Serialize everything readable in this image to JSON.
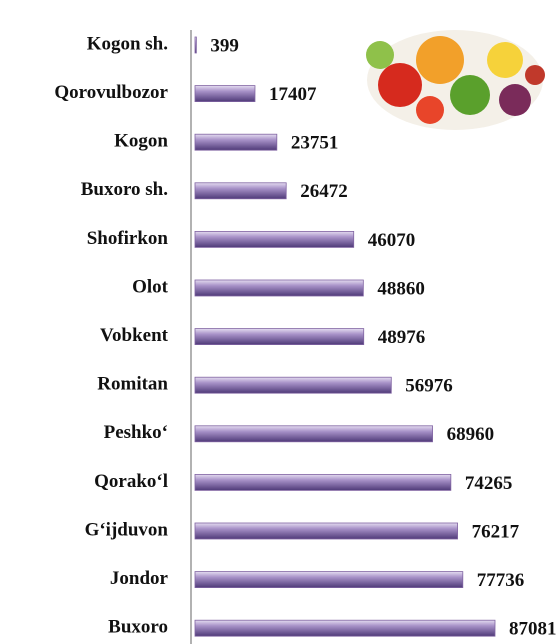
{
  "chart_data": {
    "type": "bar",
    "orientation": "horizontal",
    "categories": [
      "Kogon sh.",
      "Qorovulbozor",
      "Kogon",
      "Buxoro sh.",
      "Shofirkon",
      "Olot",
      "Vobkent",
      "Romitan",
      "Peshko‘",
      "Qorako‘l",
      "G‘ijduvon",
      "Jondor",
      "Buxoro"
    ],
    "values": [
      399,
      17407,
      23751,
      26472,
      46070,
      48860,
      48976,
      56976,
      68960,
      74265,
      76217,
      77736,
      87081
    ],
    "color": "#8064a2"
  }
}
